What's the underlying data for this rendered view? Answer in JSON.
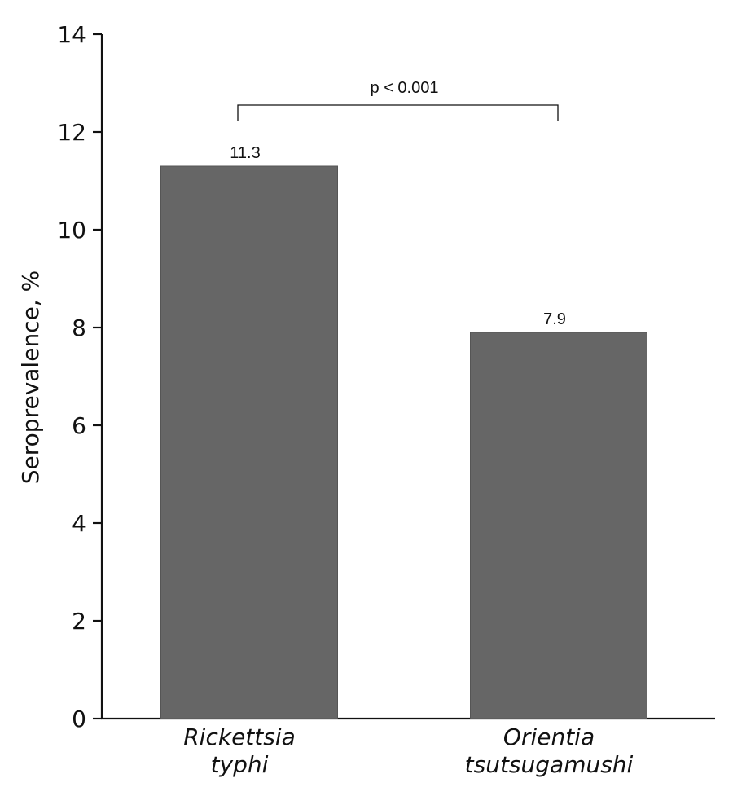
{
  "chart_data": {
    "type": "bar",
    "categories": [
      [
        "Rickettsia",
        "typhi"
      ],
      [
        "Orientia",
        "tsutsugamushi"
      ]
    ],
    "values": [
      11.3,
      7.9
    ],
    "value_labels": [
      "11.3",
      "7.9"
    ],
    "ylabel": "Seroprevalence, %",
    "xlabel": "",
    "ylim": [
      0,
      14
    ],
    "yticks": [
      0,
      2,
      4,
      6,
      8,
      10,
      12,
      14
    ],
    "grid": false,
    "bar_color": "#666666",
    "annotation": {
      "text": "p < 0.001",
      "between": [
        0,
        1
      ],
      "y": 12.55
    }
  }
}
